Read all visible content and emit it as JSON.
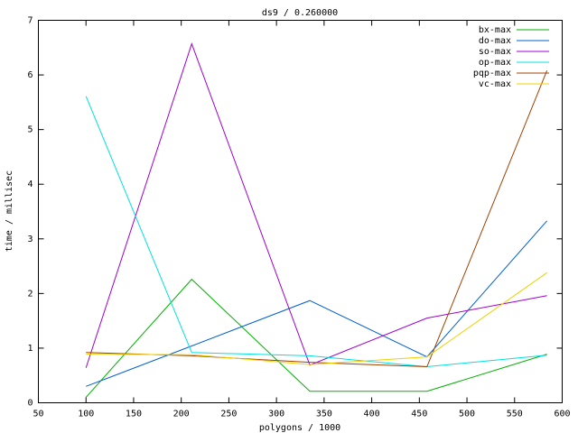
{
  "chart_data": {
    "type": "line",
    "title": "ds9 / 0.260000",
    "x_label": "polygons / 1000",
    "y_label": "time / millisec",
    "x": [
      100,
      211,
      335,
      458,
      584
    ],
    "series": [
      {
        "name": "bx-max",
        "color": "#00b000",
        "values": [
          0.1,
          2.26,
          0.21,
          0.21,
          0.89
        ]
      },
      {
        "name": "do-max",
        "color": "#0060d0",
        "values": [
          0.3,
          1.04,
          1.87,
          0.84,
          3.33
        ]
      },
      {
        "name": "so-max",
        "color": "#a000d0",
        "values": [
          0.64,
          6.57,
          0.69,
          1.55,
          1.96
        ]
      },
      {
        "name": "op-max",
        "color": "#00e0e0",
        "values": [
          5.61,
          0.92,
          0.86,
          0.66,
          0.87
        ]
      },
      {
        "name": "pqp-max",
        "color": "#a04000",
        "values": [
          0.92,
          0.86,
          0.74,
          0.66,
          6.08
        ]
      },
      {
        "name": "vc-max",
        "color": "#f0d000",
        "values": [
          0.89,
          0.88,
          0.7,
          0.84,
          2.38
        ]
      }
    ],
    "xlim": [
      50,
      600
    ],
    "xticks": [
      50,
      100,
      150,
      200,
      250,
      300,
      350,
      400,
      450,
      500,
      550,
      600
    ],
    "ylim": [
      0,
      7
    ],
    "yticks": [
      0,
      1,
      2,
      3,
      4,
      5,
      6,
      7
    ],
    "legend": "top-right",
    "grid": false
  }
}
